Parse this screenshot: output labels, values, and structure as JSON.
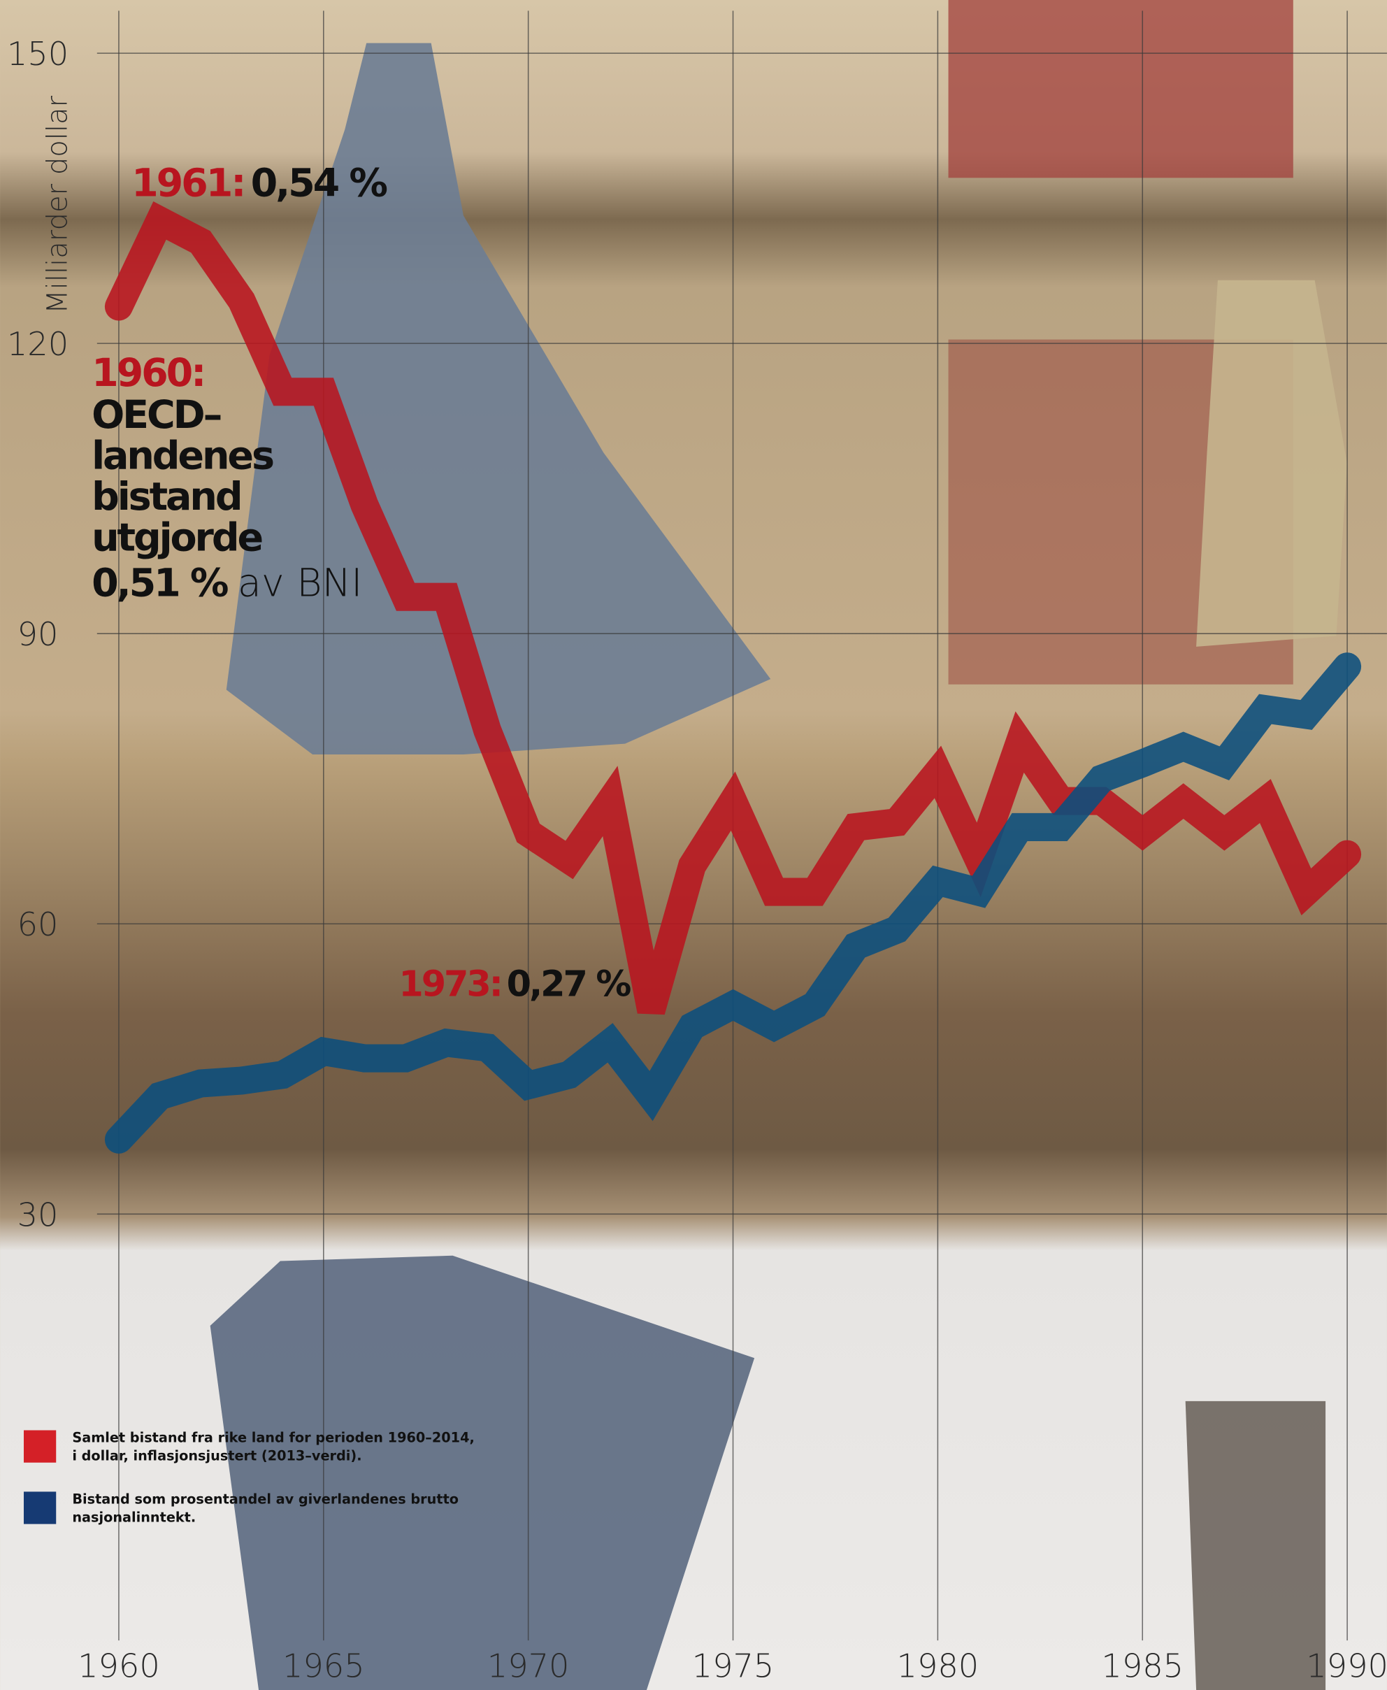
{
  "chart_data": {
    "type": "line",
    "y_label": "Milliarder dollar",
    "x": [
      1960,
      1961,
      1962,
      1963,
      1964,
      1965,
      1966,
      1967,
      1968,
      1969,
      1970,
      1971,
      1972,
      1973,
      1974,
      1975,
      1976,
      1977,
      1978,
      1979,
      1980,
      1981,
      1982,
      1983,
      1984,
      1985,
      1986,
      1987,
      1988,
      1989,
      1990
    ],
    "series": [
      {
        "name": "Samlet bistand fra rike land for perioden 1960–2014, i dollar, inflasjonsjustert (2013–verdi).",
        "color": "#b8151f",
        "values": [
          123.8,
          132.7,
          130.5,
          124.4,
          115,
          115,
          103.3,
          93.8,
          93.8,
          80,
          69.4,
          66.6,
          72.7,
          51,
          66,
          72.7,
          63.3,
          63.3,
          70,
          70.5,
          75.7,
          66.6,
          78.8,
          72.7,
          72.7,
          69.4,
          72.7,
          69.4,
          72.7,
          63.3,
          67.2
        ]
      },
      {
        "name": "Bistand som prosentandel av giverlandenes brutto nasjonalinntekt.",
        "color": "#0b4f7d",
        "values": [
          37.7,
          42.2,
          43.5,
          43.8,
          44.4,
          46.8,
          46.1,
          46.1,
          47.7,
          47.2,
          43.3,
          44.4,
          47.7,
          42.2,
          49.4,
          51.6,
          49.4,
          51.6,
          57.7,
          59.4,
          64.4,
          63.3,
          70,
          70,
          75,
          76.6,
          78.3,
          76.6,
          82.2,
          81.6,
          86.6
        ]
      }
    ],
    "legend_colors": [
      "#d42027",
      "#163a73"
    ],
    "xlim": [
      1957.1,
      1990.97
    ],
    "ylim": [
      -19.2,
      155.5
    ],
    "xticks": [
      1960,
      1965,
      1970,
      1975,
      1980,
      1985,
      1990
    ],
    "yticks": [
      30,
      60,
      90,
      120,
      150
    ],
    "grid": true,
    "annotations": [
      {
        "label": "1961:",
        "text": "0,54 %"
      },
      {
        "label": "1960:",
        "lines": [
          "OECD–",
          "landenes",
          "bistand",
          "utgjorde"
        ],
        "text": "0,51 %",
        "suffix": "av BNI"
      },
      {
        "label": "1973:",
        "text": "0,27 %"
      }
    ]
  }
}
